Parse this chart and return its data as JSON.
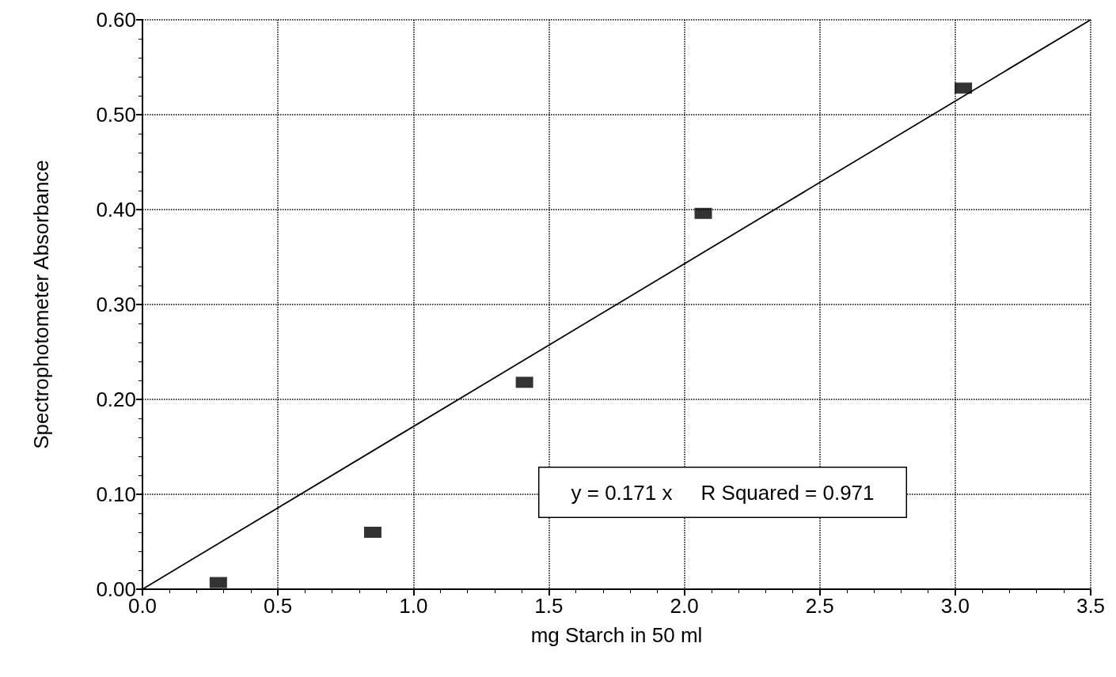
{
  "chart_data": {
    "type": "scatter",
    "xlabel": "mg Starch in 50 ml",
    "ylabel": "Spectrophotometer Absorbance",
    "xlim": [
      0,
      3.5
    ],
    "xticks": [
      {
        "value": 0,
        "label": "0.0"
      },
      0.5,
      {
        "value": 1,
        "label": "1.0"
      },
      1.5,
      {
        "value": 2,
        "label": "2.0"
      },
      2.5,
      {
        "value": 3,
        "label": "3.0"
      },
      3.5
    ],
    "ylim": [
      0,
      0.6
    ],
    "yticks": [
      {
        "value": 0,
        "label": "0.00"
      },
      {
        "value": 0.1,
        "label": "0.10"
      },
      {
        "value": 0.2,
        "label": "0.20"
      },
      {
        "value": 0.3,
        "label": "0.30"
      },
      {
        "value": 0.4,
        "label": "0.40"
      },
      {
        "value": 0.5,
        "label": "0.50"
      },
      {
        "value": 0.6,
        "label": "0.60"
      }
    ],
    "grid": true,
    "series": [
      {
        "color": "#000000",
        "marker": "square",
        "x": [
          0.28,
          0.85,
          1.41,
          2.07,
          3.03
        ],
        "values": [
          0.007,
          0.06,
          0.218,
          0.396,
          0.528
        ]
      },
      {
        "type": "line",
        "color": "#000000",
        "marker": "none",
        "line_style": "solid",
        "x": [
          0,
          3.5
        ],
        "values": [
          0,
          0.6
        ]
      }
    ],
    "annotations": [
      "y = 0.171 x     R Squared = 0.971"
    ]
  }
}
